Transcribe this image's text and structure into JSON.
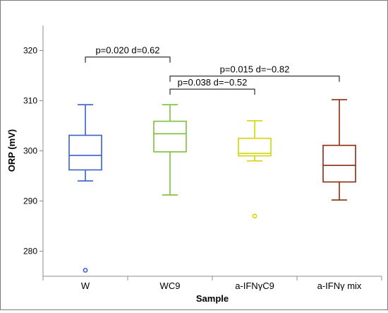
{
  "chart_data": {
    "type": "box",
    "title": "",
    "xlabel": "Sample",
    "ylabel": "ORP (mV)",
    "ylim": [
      275,
      325
    ],
    "yticks": [
      280,
      290,
      300,
      310,
      320
    ],
    "grid": false,
    "legend": "none",
    "categories": [
      "W",
      "WC9",
      "a-IFNγC9",
      "a-IFNγ mix"
    ],
    "colors": [
      "#3a5fcd",
      "#7cbf3a",
      "#d4d40a",
      "#8a2b0e"
    ],
    "boxes": [
      {
        "category": "W",
        "min": 294.0,
        "q1": 296.2,
        "median": 299.1,
        "q3": 303.1,
        "max": 309.2,
        "outliers": [
          276.2
        ]
      },
      {
        "category": "WC9",
        "min": 291.2,
        "q1": 299.8,
        "median": 303.4,
        "q3": 305.9,
        "max": 309.2,
        "outliers": []
      },
      {
        "category": "a-IFNγC9",
        "min": 298.0,
        "q1": 299.0,
        "median": 299.5,
        "q3": 302.5,
        "max": 306.0,
        "outliers": [
          287.0
        ]
      },
      {
        "category": "a-IFNγ mix",
        "min": 290.2,
        "q1": 293.8,
        "median": 297.1,
        "q3": 301.1,
        "max": 310.2,
        "outliers": []
      }
    ],
    "annotations": [
      {
        "from": 0,
        "to": 1,
        "y": 318.7,
        "label": "p=0.020  d=0.62"
      },
      {
        "from": 1,
        "to": 3,
        "y": 314.9,
        "label": "p=0.015  d=−0.82"
      },
      {
        "from": 1,
        "to": 2,
        "y": 312.3,
        "label": "p=0.038  d=−0.52"
      }
    ]
  }
}
